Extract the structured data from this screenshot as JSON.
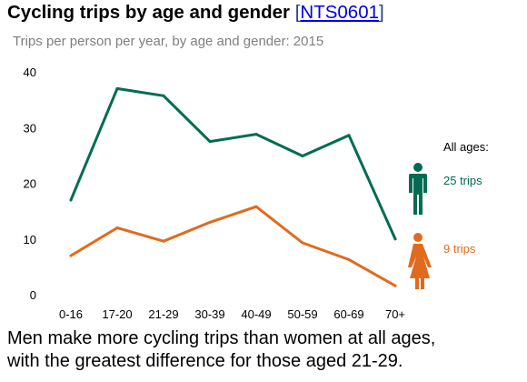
{
  "header": {
    "title": "Cycling trips by age and gender",
    "link_open": "[",
    "link_text": "NTS0601",
    "link_close": "]",
    "subtitle": "Trips per person per year, by age and gender: 2015"
  },
  "legend": {
    "heading": "All ages:",
    "men_value": "25 trips",
    "women_value": "9 trips",
    "men_icon": "man-icon",
    "women_icon": "woman-icon"
  },
  "caption": {
    "line1": "Men make more cycling trips than women at all ages,",
    "line2": "with the greatest difference for those aged 21-29."
  },
  "chart_data": {
    "type": "line",
    "title": "Cycling trips by age and gender",
    "subtitle": "Trips per person per year, by age and gender: 2015",
    "categories": [
      "0-16",
      "17-20",
      "21-29",
      "30-39",
      "40-49",
      "50-59",
      "60-69",
      "70+"
    ],
    "ylim": [
      0,
      40
    ],
    "yticks": [
      0,
      10,
      20,
      30,
      40
    ],
    "grid": false,
    "legend_placement": "right",
    "series": [
      {
        "key": "men",
        "values": [
          17,
          37,
          35.7,
          27.5,
          28.8,
          24.9,
          28.6,
          10
        ],
        "color": "#006c52"
      },
      {
        "key": "women",
        "values": [
          7,
          12,
          9.6,
          13,
          15.8,
          9.3,
          6.3,
          1.6
        ],
        "color": "#e06b1f"
      }
    ]
  }
}
